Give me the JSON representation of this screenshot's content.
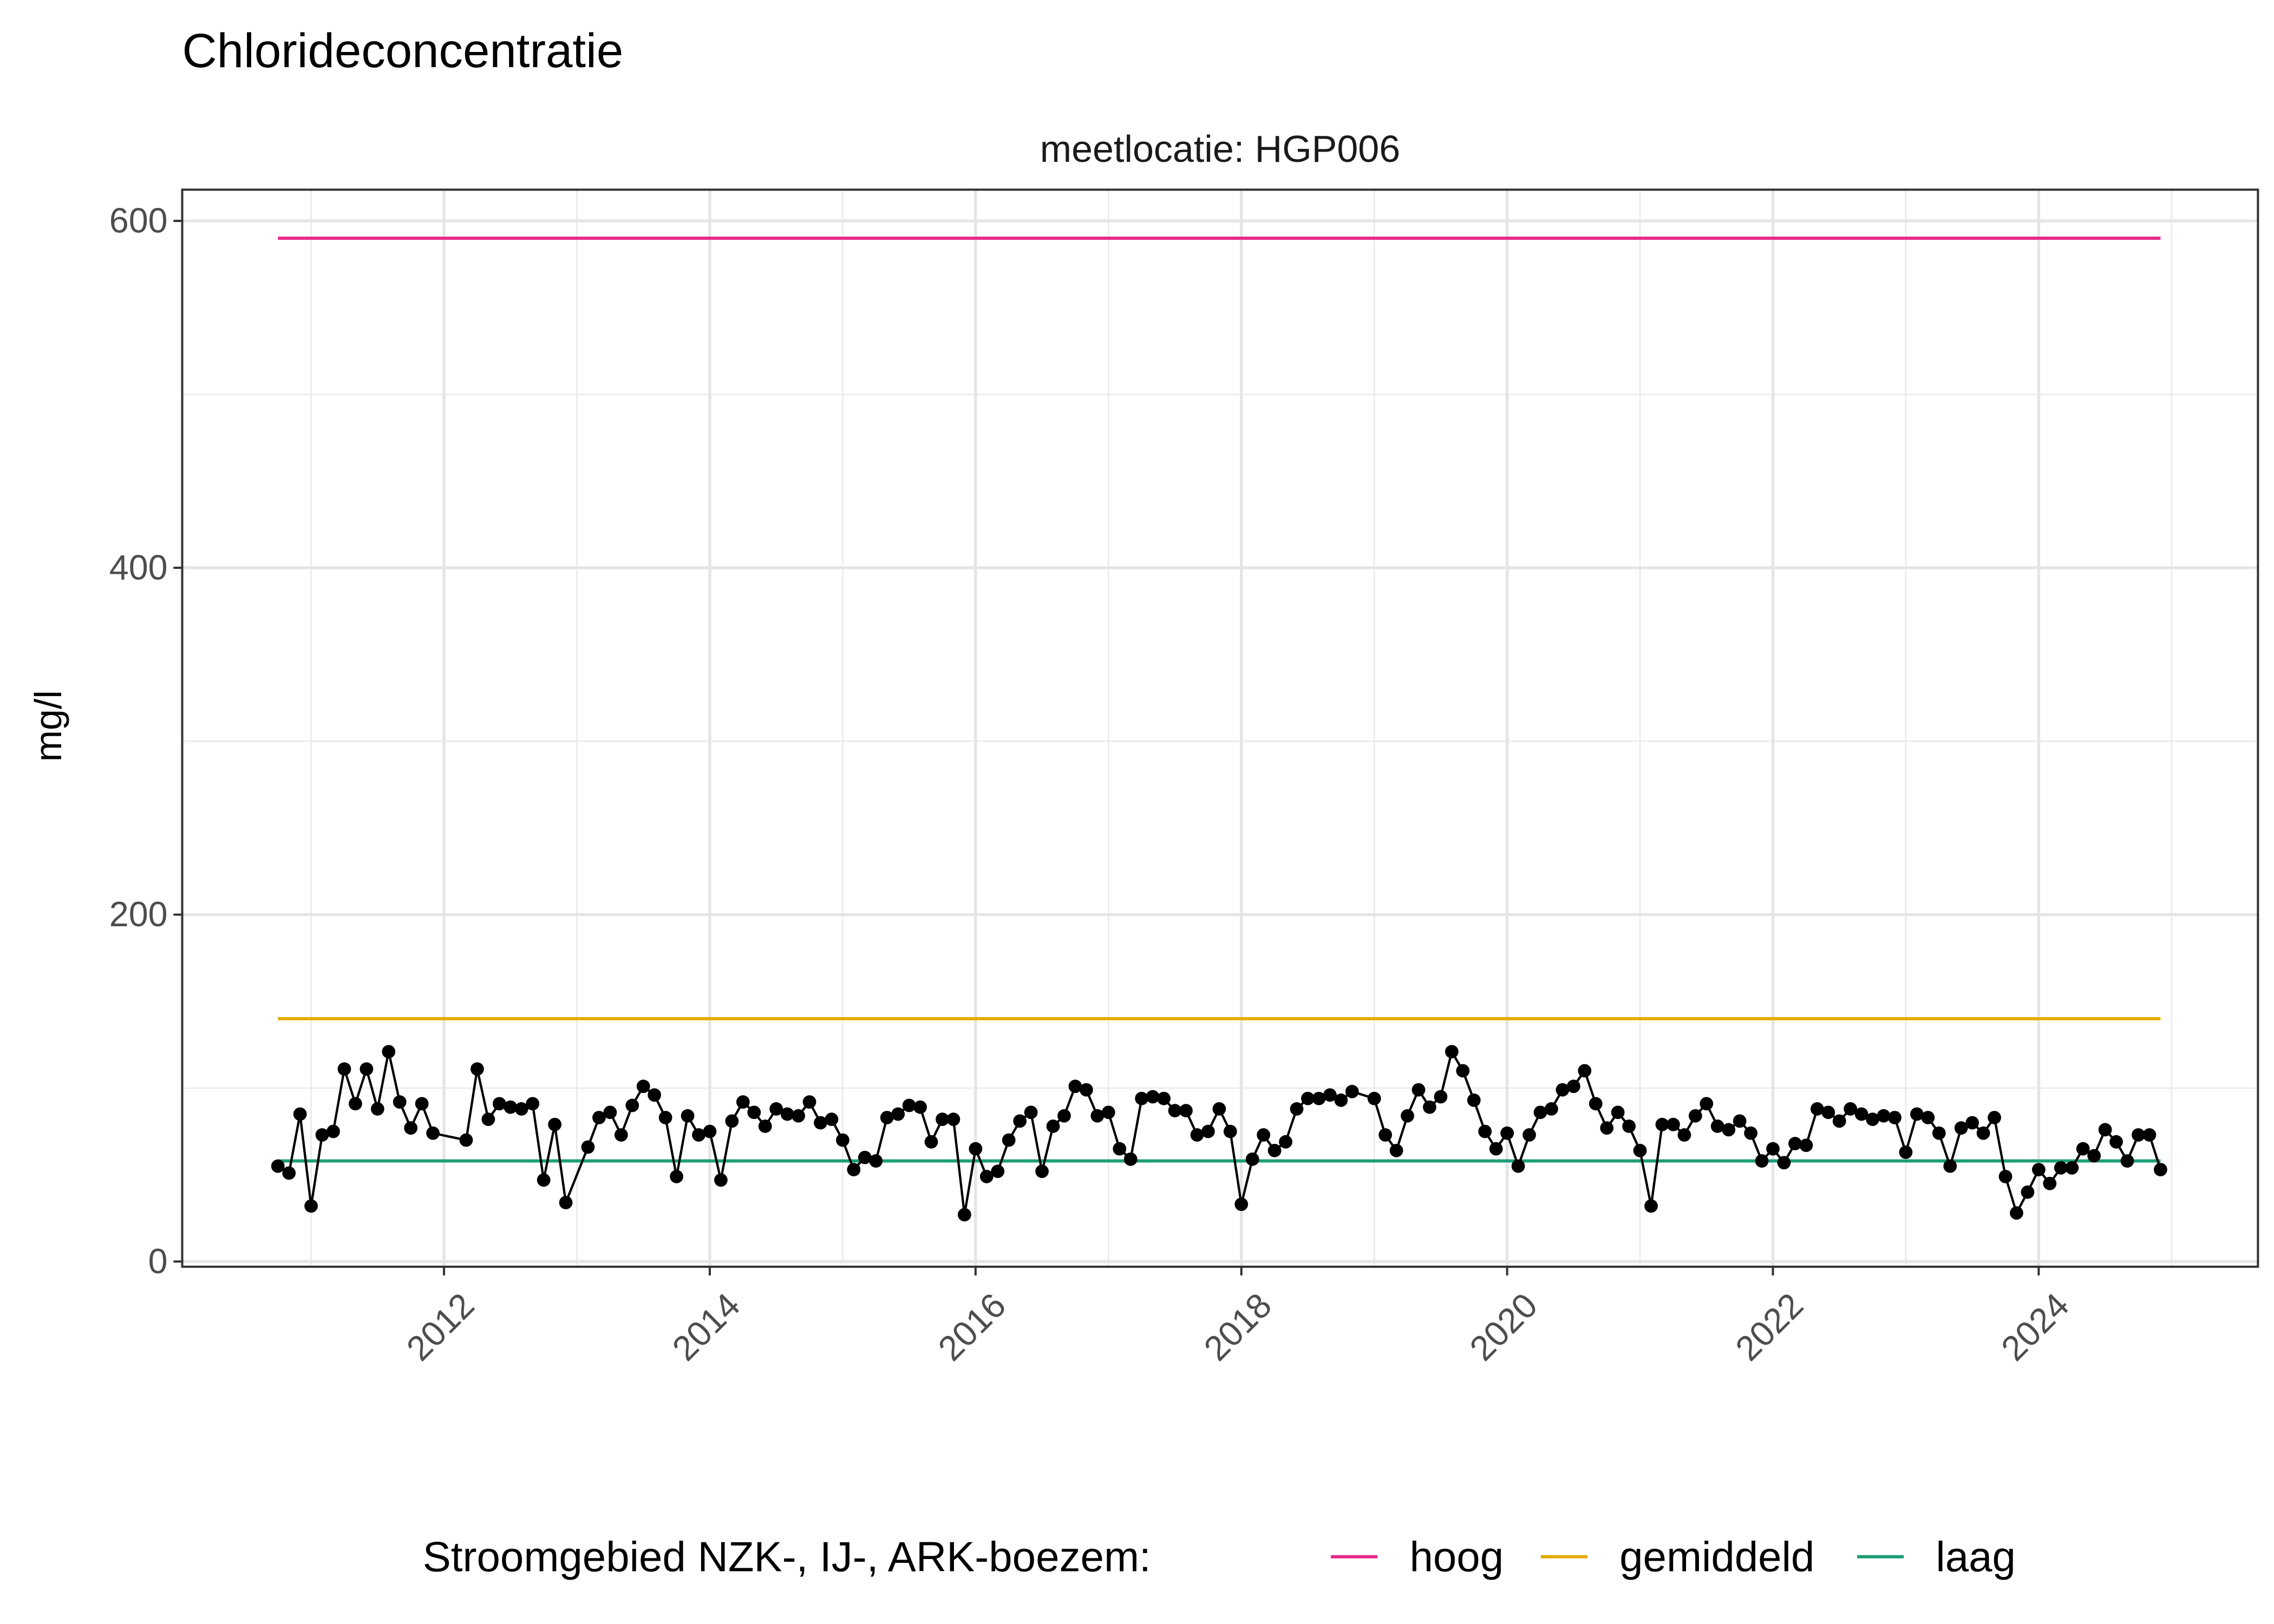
{
  "chart_data": {
    "type": "line",
    "title": "Chlorideconcentratie",
    "facet_label": "meetlocatie: HGP006",
    "xlabel": "",
    "ylabel": "mg/l",
    "xlim": [
      2010.03,
      2025.65
    ],
    "ylim": [
      -3,
      618
    ],
    "x_ticks": [
      "2012",
      "2014",
      "2016",
      "2018",
      "2020",
      "2022",
      "2024"
    ],
    "y_ticks": [
      "0",
      "200",
      "400",
      "600"
    ],
    "grid": true,
    "legend": {
      "title": "Stroomgebied NZK-, IJ-, ARK-boezem:",
      "placement": "bottom",
      "entries": [
        {
          "label": "hoog",
          "color": "#e7298a"
        },
        {
          "label": "gemiddeld",
          "color": "#e6ab02"
        },
        {
          "label": "laag",
          "color": "#1b9e77"
        }
      ]
    },
    "reference_lines": [
      {
        "name": "hoog",
        "value": 590,
        "from": "2010-10",
        "to": "2024-12",
        "color": "#e7298a"
      },
      {
        "name": "gemiddeld",
        "value": 140,
        "from": "2010-10",
        "to": "2024-12",
        "color": "#e6ab02"
      },
      {
        "name": "laag",
        "value": 58,
        "from": "2010-10",
        "to": "2024-12",
        "color": "#1b9e77"
      }
    ],
    "series": [
      {
        "color": "#000000",
        "points": [
          [
            "2010-10",
            55
          ],
          [
            "2010-11",
            51
          ],
          [
            "2010-12",
            85
          ],
          [
            "2011-01",
            32
          ],
          [
            "2011-02",
            73
          ],
          [
            "2011-03",
            75
          ],
          [
            "2011-04",
            111
          ],
          [
            "2011-05",
            91
          ],
          [
            "2011-06",
            111
          ],
          [
            "2011-07",
            88
          ],
          [
            "2011-08",
            121
          ],
          [
            "2011-09",
            92
          ],
          [
            "2011-10",
            77
          ],
          [
            "2011-11",
            91
          ],
          [
            "2011-12",
            74
          ],
          [
            "2012-03",
            70
          ],
          [
            "2012-04",
            111
          ],
          [
            "2012-05",
            82
          ],
          [
            "2012-06",
            91
          ],
          [
            "2012-07",
            89
          ],
          [
            "2012-08",
            88
          ],
          [
            "2012-09",
            91
          ],
          [
            "2012-10",
            47
          ],
          [
            "2012-11",
            79
          ],
          [
            "2012-12",
            34
          ],
          [
            "2013-02",
            66
          ],
          [
            "2013-03",
            83
          ],
          [
            "2013-04",
            86
          ],
          [
            "2013-05",
            73
          ],
          [
            "2013-06",
            90
          ],
          [
            "2013-07",
            101
          ],
          [
            "2013-08",
            96
          ],
          [
            "2013-09",
            83
          ],
          [
            "2013-10",
            49
          ],
          [
            "2013-11",
            84
          ],
          [
            "2013-12",
            73
          ],
          [
            "2014-01",
            75
          ],
          [
            "2014-02",
            47
          ],
          [
            "2014-03",
            81
          ],
          [
            "2014-04",
            92
          ],
          [
            "2014-05",
            86
          ],
          [
            "2014-06",
            78
          ],
          [
            "2014-07",
            88
          ],
          [
            "2014-08",
            85
          ],
          [
            "2014-09",
            84
          ],
          [
            "2014-10",
            92
          ],
          [
            "2014-11",
            80
          ],
          [
            "2014-12",
            82
          ],
          [
            "2015-01",
            70
          ],
          [
            "2015-02",
            53
          ],
          [
            "2015-03",
            60
          ],
          [
            "2015-04",
            58
          ],
          [
            "2015-05",
            83
          ],
          [
            "2015-06",
            85
          ],
          [
            "2015-07",
            90
          ],
          [
            "2015-08",
            89
          ],
          [
            "2015-09",
            69
          ],
          [
            "2015-10",
            82
          ],
          [
            "2015-11",
            82
          ],
          [
            "2015-12",
            27
          ],
          [
            "2016-01",
            65
          ],
          [
            "2016-02",
            49
          ],
          [
            "2016-03",
            52
          ],
          [
            "2016-04",
            70
          ],
          [
            "2016-05",
            81
          ],
          [
            "2016-06",
            86
          ],
          [
            "2016-07",
            52
          ],
          [
            "2016-08",
            78
          ],
          [
            "2016-09",
            84
          ],
          [
            "2016-10",
            101
          ],
          [
            "2016-11",
            99
          ],
          [
            "2016-12",
            84
          ],
          [
            "2017-01",
            86
          ],
          [
            "2017-02",
            65
          ],
          [
            "2017-03",
            59
          ],
          [
            "2017-04",
            94
          ],
          [
            "2017-05",
            95
          ],
          [
            "2017-06",
            94
          ],
          [
            "2017-07",
            87
          ],
          [
            "2017-08",
            87
          ],
          [
            "2017-09",
            73
          ],
          [
            "2017-10",
            75
          ],
          [
            "2017-11",
            88
          ],
          [
            "2017-12",
            75
          ],
          [
            "2018-01",
            33
          ],
          [
            "2018-02",
            59
          ],
          [
            "2018-03",
            73
          ],
          [
            "2018-04",
            64
          ],
          [
            "2018-05",
            69
          ],
          [
            "2018-06",
            88
          ],
          [
            "2018-07",
            94
          ],
          [
            "2018-08",
            94
          ],
          [
            "2018-09",
            96
          ],
          [
            "2018-10",
            93
          ],
          [
            "2018-11",
            98
          ],
          [
            "2019-01",
            94
          ],
          [
            "2019-02",
            73
          ],
          [
            "2019-03",
            64
          ],
          [
            "2019-04",
            84
          ],
          [
            "2019-05",
            99
          ],
          [
            "2019-06",
            89
          ],
          [
            "2019-07",
            95
          ],
          [
            "2019-08",
            121
          ],
          [
            "2019-09",
            110
          ],
          [
            "2019-10",
            93
          ],
          [
            "2019-11",
            75
          ],
          [
            "2019-12",
            65
          ],
          [
            "2020-01",
            74
          ],
          [
            "2020-02",
            55
          ],
          [
            "2020-03",
            73
          ],
          [
            "2020-04",
            86
          ],
          [
            "2020-05",
            88
          ],
          [
            "2020-06",
            99
          ],
          [
            "2020-07",
            101
          ],
          [
            "2020-08",
            110
          ],
          [
            "2020-09",
            91
          ],
          [
            "2020-10",
            77
          ],
          [
            "2020-11",
            86
          ],
          [
            "2020-12",
            78
          ],
          [
            "2021-01",
            64
          ],
          [
            "2021-02",
            32
          ],
          [
            "2021-03",
            79
          ],
          [
            "2021-04",
            79
          ],
          [
            "2021-05",
            73
          ],
          [
            "2021-06",
            84
          ],
          [
            "2021-07",
            91
          ],
          [
            "2021-08",
            78
          ],
          [
            "2021-09",
            76
          ],
          [
            "2021-10",
            81
          ],
          [
            "2021-11",
            74
          ],
          [
            "2021-12",
            58
          ],
          [
            "2022-01",
            65
          ],
          [
            "2022-02",
            57
          ],
          [
            "2022-03",
            68
          ],
          [
            "2022-04",
            67
          ],
          [
            "2022-05",
            88
          ],
          [
            "2022-06",
            86
          ],
          [
            "2022-07",
            81
          ],
          [
            "2022-08",
            88
          ],
          [
            "2022-09",
            85
          ],
          [
            "2022-10",
            82
          ],
          [
            "2022-11",
            84
          ],
          [
            "2022-12",
            83
          ],
          [
            "2023-01",
            63
          ],
          [
            "2023-02",
            85
          ],
          [
            "2023-03",
            83
          ],
          [
            "2023-04",
            74
          ],
          [
            "2023-05",
            55
          ],
          [
            "2023-06",
            77
          ],
          [
            "2023-07",
            80
          ],
          [
            "2023-08",
            74
          ],
          [
            "2023-09",
            83
          ],
          [
            "2023-10",
            49
          ],
          [
            "2023-11",
            28
          ],
          [
            "2023-12",
            40
          ],
          [
            "2024-01",
            53
          ],
          [
            "2024-02",
            45
          ],
          [
            "2024-03",
            54
          ],
          [
            "2024-04",
            54
          ],
          [
            "2024-05",
            65
          ],
          [
            "2024-06",
            61
          ],
          [
            "2024-07",
            76
          ],
          [
            "2024-08",
            69
          ],
          [
            "2024-09",
            58
          ],
          [
            "2024-10",
            73
          ],
          [
            "2024-11",
            73
          ],
          [
            "2024-12",
            53
          ]
        ]
      }
    ]
  }
}
